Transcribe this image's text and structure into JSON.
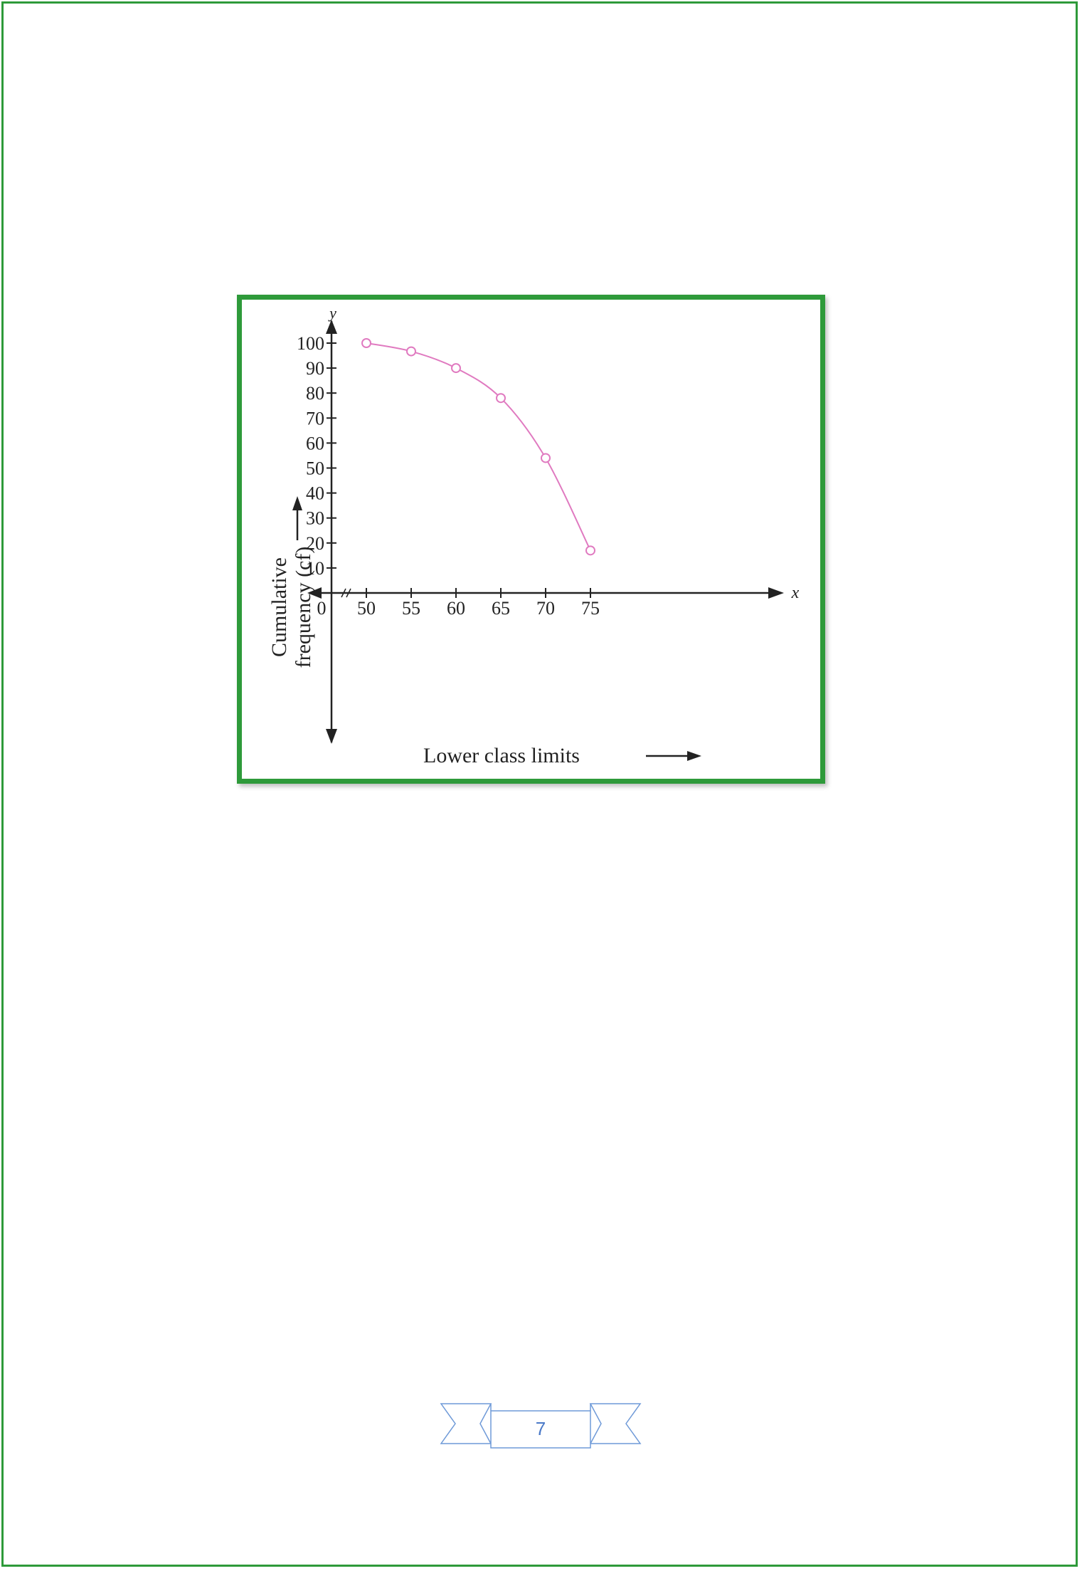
{
  "chart_data": {
    "type": "line",
    "x_axis_letter": "x",
    "y_axis_letter": "y",
    "xlabel": "Lower class limits",
    "ylabel_line1": "Cumulative",
    "ylabel_line2": "frequency (cf)",
    "origin_label": "0",
    "x_ticks": [
      50,
      55,
      60,
      65,
      70,
      75
    ],
    "y_ticks": [
      10,
      20,
      30,
      40,
      50,
      60,
      70,
      80,
      90,
      100
    ],
    "xlim": [
      45,
      85
    ],
    "ylim": [
      0,
      100
    ],
    "x_axis_break": true,
    "grid": false,
    "points": [
      {
        "x": 50,
        "y": 100
      },
      {
        "x": 55,
        "y": 96.7
      },
      {
        "x": 60,
        "y": 90
      },
      {
        "x": 65,
        "y": 78
      },
      {
        "x": 70,
        "y": 54
      },
      {
        "x": 75,
        "y": 17
      }
    ],
    "colors": {
      "line": "#e07ac0",
      "axis": "#222222",
      "frame": "#2e9a3a"
    }
  },
  "footer": {
    "page_number": "7",
    "badge_color": "#6f9ad8"
  }
}
